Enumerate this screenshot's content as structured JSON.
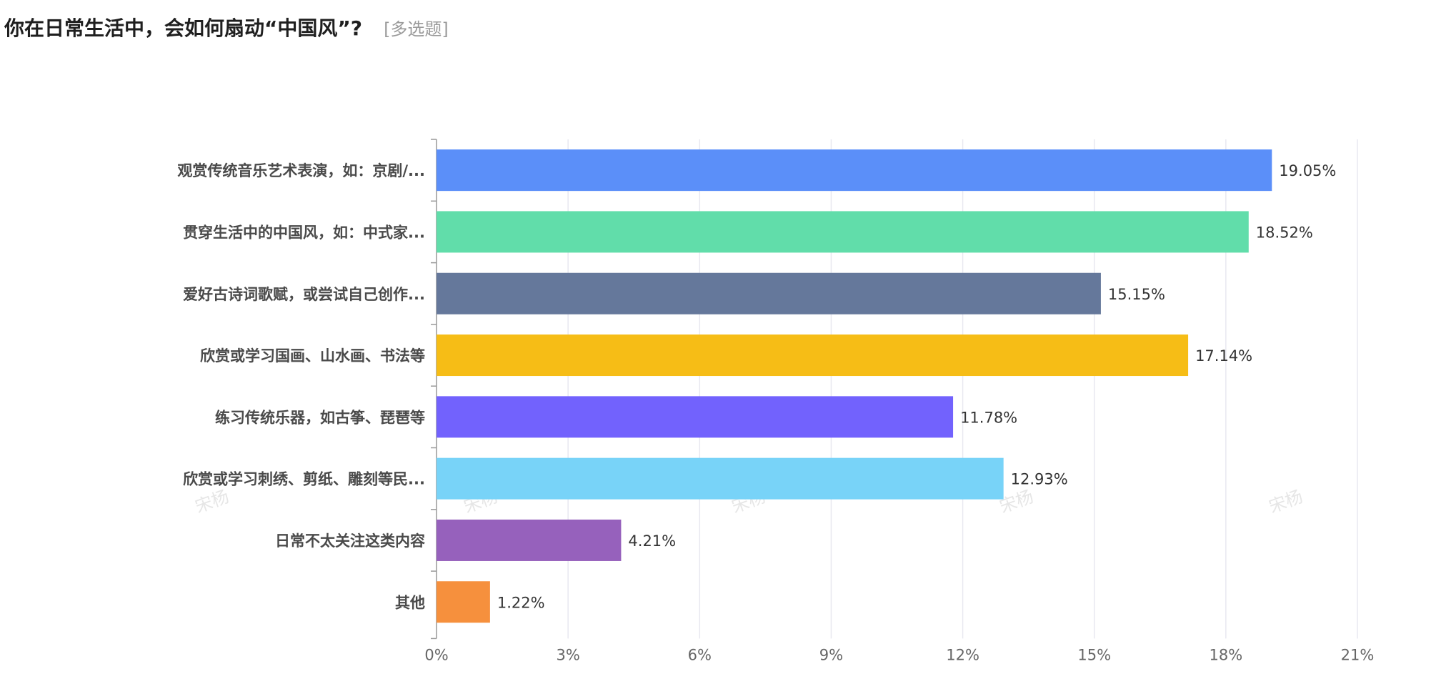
{
  "question": {
    "title": "你在日常生活中，会如何扇动“中国风”?",
    "type_tag": "[多选题]"
  },
  "watermark": "宋杨",
  "chart_data": {
    "type": "bar",
    "orientation": "horizontal",
    "categories": [
      "观赏传统音乐艺术表演，如：京剧/...",
      "贯穿生活中的中国风，如：中式家...",
      "爱好古诗词歌赋，或尝试自己创作...",
      "欣赏或学习国画、山水画、书法等",
      "练习传统乐器，如古筝、琵琶等",
      "欣赏或学习刺绣、剪纸、雕刻等民...",
      "日常不太关注这类内容",
      "其他"
    ],
    "values": [
      19.05,
      18.52,
      15.15,
      17.14,
      11.78,
      12.93,
      4.21,
      1.22
    ],
    "value_labels": [
      "19.05%",
      "18.52%",
      "15.15%",
      "17.14%",
      "11.78%",
      "12.93%",
      "4.21%",
      "1.22%"
    ],
    "colors": [
      "#5b8ff9",
      "#61ddaa",
      "#65789b",
      "#f6bd16",
      "#7262fd",
      "#78d3f8",
      "#9661bc",
      "#f6903d"
    ],
    "xlim": [
      0,
      21
    ],
    "xticks": [
      "0%",
      "3%",
      "6%",
      "9%",
      "12%",
      "15%",
      "18%",
      "21%"
    ],
    "grid": true
  }
}
